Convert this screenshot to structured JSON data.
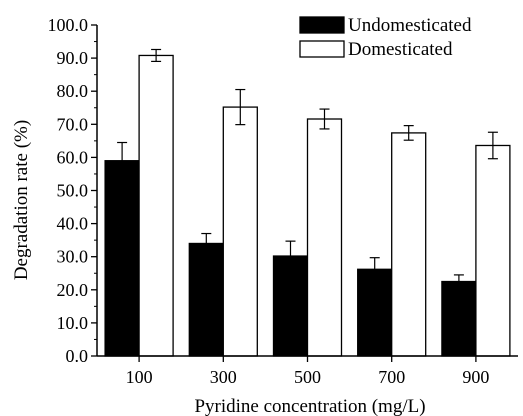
{
  "chart_data": {
    "type": "bar",
    "xlabel": "Pyridine concentration (mg/L)",
    "ylabel": "Degradation rate (%)",
    "categories": [
      "100",
      "300",
      "500",
      "700",
      "900"
    ],
    "ylim": [
      0,
      100
    ],
    "yticks": [
      "0.0",
      "10.0",
      "20.0",
      "30.0",
      "40.0",
      "50.0",
      "60.0",
      "70.0",
      "80.0",
      "90.0",
      "100.0"
    ],
    "legend_position": "top-right",
    "grid": false,
    "series": [
      {
        "name": "Undomesticated",
        "color": "#000000",
        "values": [
          59.0,
          34.0,
          30.2,
          26.2,
          22.5
        ],
        "errors": [
          5.5,
          3.0,
          4.5,
          3.5,
          2.0
        ]
      },
      {
        "name": "Domesticated",
        "color": "#ffffff",
        "values": [
          90.8,
          75.2,
          71.6,
          67.4,
          63.6
        ],
        "errors": [
          1.8,
          5.3,
          3.0,
          2.2,
          4.0
        ]
      }
    ]
  }
}
